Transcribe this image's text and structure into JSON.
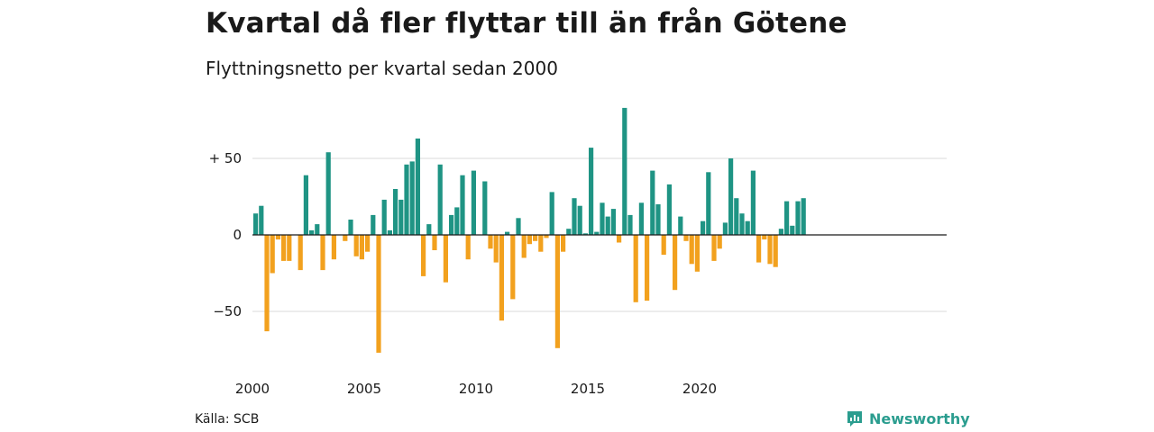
{
  "header": {
    "title": "Kvartal då fler flyttar till än från Götene",
    "subtitle": "Flyttningsnetto per kvartal sedan 2000"
  },
  "footer": {
    "source": "Källa: SCB",
    "brand": "Newsworthy"
  },
  "colors": {
    "positive": "#1f9484",
    "negative": "#f2a11e",
    "grid": "#d9d9d9",
    "zero": "#1a1a1a"
  },
  "chart_data": {
    "type": "bar",
    "title": "Kvartal då fler flyttar till än från Götene",
    "subtitle": "Flyttningsnetto per kvartal sedan 2000",
    "xlabel": "",
    "ylabel": "",
    "x_ticks": [
      "2000",
      "2005",
      "2010",
      "2015",
      "2020"
    ],
    "y_ticks": [
      {
        "value": 50,
        "label": "+ 50"
      },
      {
        "value": 0,
        "label": "0"
      },
      {
        "value": -50,
        "label": "−50"
      }
    ],
    "ylim": [
      -80,
      85
    ],
    "start_year": 2000,
    "grid": true,
    "values": [
      14,
      19,
      -63,
      -25,
      -3,
      -17,
      -17,
      0,
      -23,
      39,
      3,
      7,
      -23,
      54,
      -16,
      0,
      -4,
      10,
      -14,
      -16,
      -11,
      13,
      -77,
      23,
      3,
      30,
      23,
      46,
      48,
      63,
      -27,
      7,
      -10,
      46,
      -31,
      13,
      18,
      39,
      -16,
      42,
      0,
      35,
      -9,
      -18,
      -56,
      2,
      -42,
      11,
      -15,
      -6,
      -4,
      -11,
      -2,
      28,
      -74,
      -11,
      4,
      24,
      19,
      1,
      57,
      2,
      21,
      12,
      17,
      -5,
      83,
      13,
      -44,
      21,
      -43,
      42,
      20,
      -13,
      33,
      -36,
      12,
      -4,
      -19,
      -24,
      9,
      41,
      -17,
      -9,
      8,
      50,
      24,
      14,
      9,
      42,
      -18,
      -3,
      -19,
      -21,
      4,
      22,
      6,
      22,
      24
    ]
  }
}
